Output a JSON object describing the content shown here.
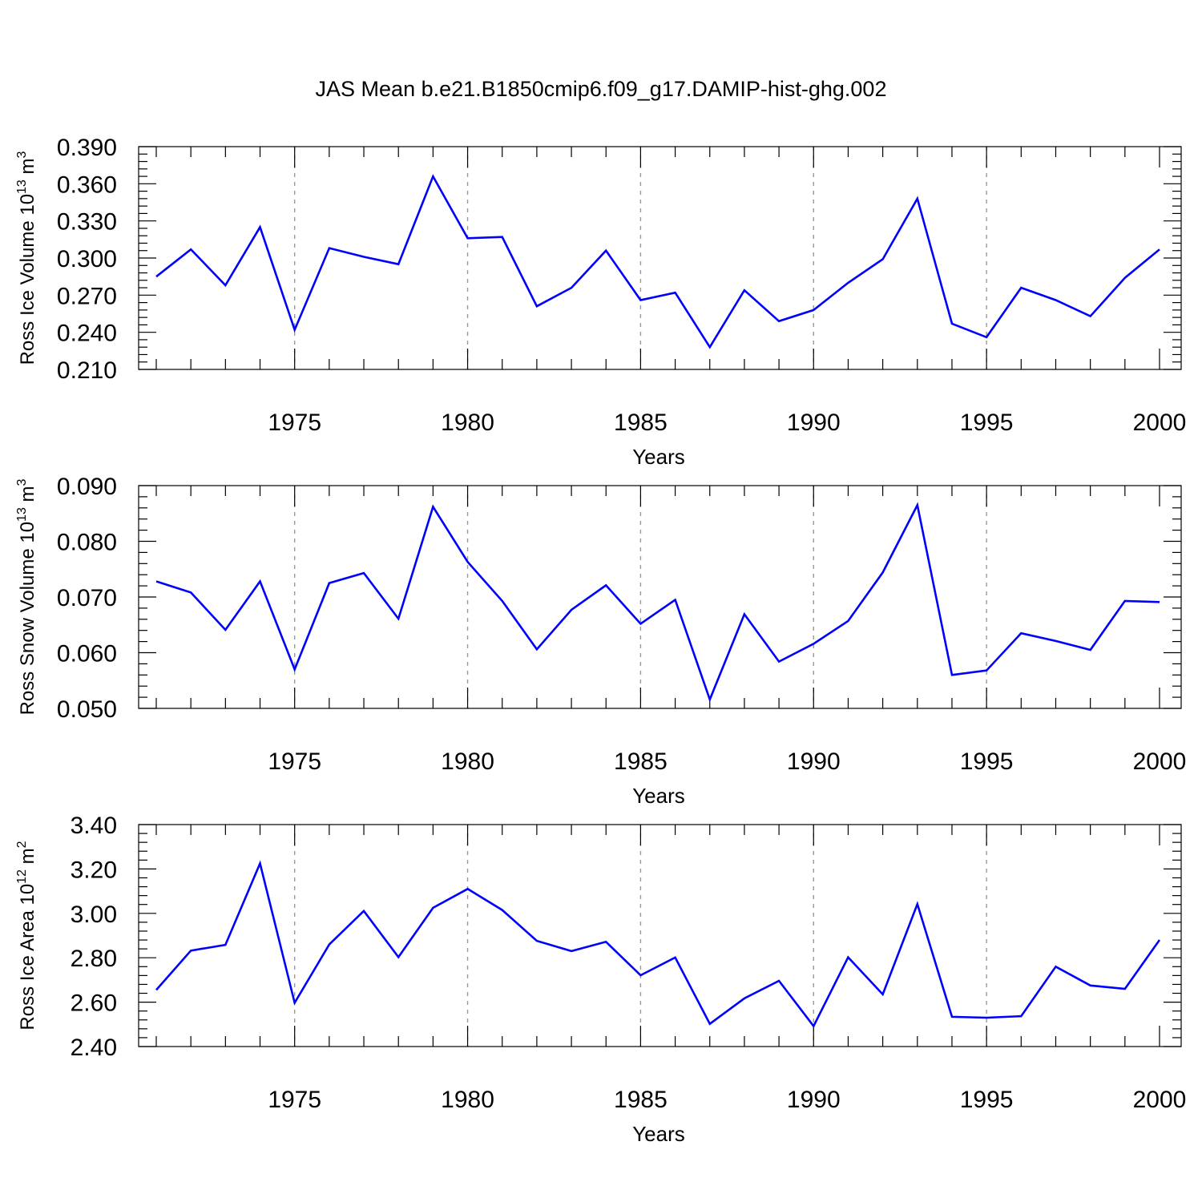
{
  "title": "JAS Mean b.e21.B1850cmip6.f09_g17.DAMIP-hist-ghg.002",
  "colors": {
    "series": "#0000ff",
    "grid": "#999999",
    "axis": "#000000"
  },
  "chart_data": [
    {
      "type": "line",
      "ylabel": {
        "main": "Ross Ice Volume 10",
        "sup1": "13",
        "mid": " m",
        "sup2": "3"
      },
      "xlabel": "Years",
      "xlim": [
        1971,
        2000
      ],
      "ylim": [
        0.21,
        0.39
      ],
      "yticks": [
        "0.210",
        "0.240",
        "0.270",
        "0.300",
        "0.330",
        "0.360",
        "0.390"
      ],
      "ytick_values": [
        0.21,
        0.24,
        0.27,
        0.3,
        0.33,
        0.36,
        0.39
      ],
      "xticks": [
        "1975",
        "1980",
        "1985",
        "1990",
        "1995",
        "2000"
      ],
      "xtick_values": [
        1975,
        1980,
        1985,
        1990,
        1995,
        2000
      ],
      "grid_x": [
        1975,
        1980,
        1985,
        1990,
        1995
      ],
      "x": [
        1971,
        1972,
        1973,
        1974,
        1975,
        1976,
        1977,
        1978,
        1979,
        1980,
        1981,
        1982,
        1983,
        1984,
        1985,
        1986,
        1987,
        1988,
        1989,
        1990,
        1991,
        1992,
        1993,
        1994,
        1995,
        1996,
        1997,
        1998,
        1999,
        2000
      ],
      "series": [
        {
          "values": [
            0.285,
            0.307,
            0.278,
            0.325,
            0.242,
            0.308,
            0.301,
            0.295,
            0.366,
            0.316,
            0.317,
            0.261,
            0.276,
            0.306,
            0.266,
            0.272,
            0.228,
            0.274,
            0.249,
            0.258,
            0.28,
            0.299,
            0.348,
            0.247,
            0.236,
            0.276,
            0.266,
            0.253,
            0.284,
            0.307
          ]
        }
      ]
    },
    {
      "type": "line",
      "ylabel": {
        "main": "Ross Snow Volume 10",
        "sup1": "13",
        "mid": " m",
        "sup2": "3"
      },
      "xlabel": "Years",
      "xlim": [
        1971,
        2000
      ],
      "ylim": [
        0.05,
        0.09
      ],
      "yticks": [
        "0.050",
        "0.060",
        "0.070",
        "0.080",
        "0.090"
      ],
      "ytick_values": [
        0.05,
        0.06,
        0.07,
        0.08,
        0.09
      ],
      "xticks": [
        "1975",
        "1980",
        "1985",
        "1990",
        "1995",
        "2000"
      ],
      "xtick_values": [
        1975,
        1980,
        1985,
        1990,
        1995,
        2000
      ],
      "grid_x": [
        1975,
        1980,
        1985,
        1990,
        1995
      ],
      "x": [
        1971,
        1972,
        1973,
        1974,
        1975,
        1976,
        1977,
        1978,
        1979,
        1980,
        1981,
        1982,
        1983,
        1984,
        1985,
        1986,
        1987,
        1988,
        1989,
        1990,
        1991,
        1992,
        1993,
        1994,
        1995,
        1996,
        1997,
        1998,
        1999,
        2000
      ],
      "series": [
        {
          "values": [
            0.0728,
            0.0708,
            0.0641,
            0.0728,
            0.057,
            0.0725,
            0.0743,
            0.0661,
            0.0862,
            0.0763,
            0.0693,
            0.0606,
            0.0677,
            0.0721,
            0.0652,
            0.0695,
            0.0516,
            0.0669,
            0.0584,
            0.0616,
            0.0657,
            0.0744,
            0.0865,
            0.056,
            0.0568,
            0.0635,
            0.0621,
            0.0605,
            0.0693,
            0.0691
          ]
        }
      ]
    },
    {
      "type": "line",
      "ylabel": {
        "main": "Ross Ice Area 10",
        "sup1": "12",
        "mid": " m",
        "sup2": "2"
      },
      "xlabel": "Years",
      "xlim": [
        1971,
        2000
      ],
      "ylim": [
        2.4,
        3.4
      ],
      "yticks": [
        "2.40",
        "2.60",
        "2.80",
        "3.00",
        "3.20",
        "3.40"
      ],
      "ytick_values": [
        2.4,
        2.6,
        2.8,
        3.0,
        3.2,
        3.4
      ],
      "xticks": [
        "1975",
        "1980",
        "1985",
        "1990",
        "1995",
        "2000"
      ],
      "xtick_values": [
        1975,
        1980,
        1985,
        1990,
        1995,
        2000
      ],
      "grid_x": [
        1975,
        1980,
        1985,
        1990,
        1995
      ],
      "x": [
        1971,
        1972,
        1973,
        1974,
        1975,
        1976,
        1977,
        1978,
        1979,
        1980,
        1981,
        1982,
        1983,
        1984,
        1985,
        1986,
        1987,
        1988,
        1989,
        1990,
        1991,
        1992,
        1993,
        1994,
        1995,
        1996,
        1997,
        1998,
        1999,
        2000
      ],
      "series": [
        {
          "values": [
            2.655,
            2.832,
            2.858,
            3.225,
            2.597,
            2.86,
            3.011,
            2.803,
            3.025,
            3.11,
            3.015,
            2.876,
            2.83,
            2.872,
            2.721,
            2.801,
            2.502,
            2.617,
            2.696,
            2.492,
            2.802,
            2.635,
            3.042,
            2.534,
            2.53,
            2.537,
            2.76,
            2.675,
            2.66,
            2.88
          ]
        }
      ]
    }
  ]
}
